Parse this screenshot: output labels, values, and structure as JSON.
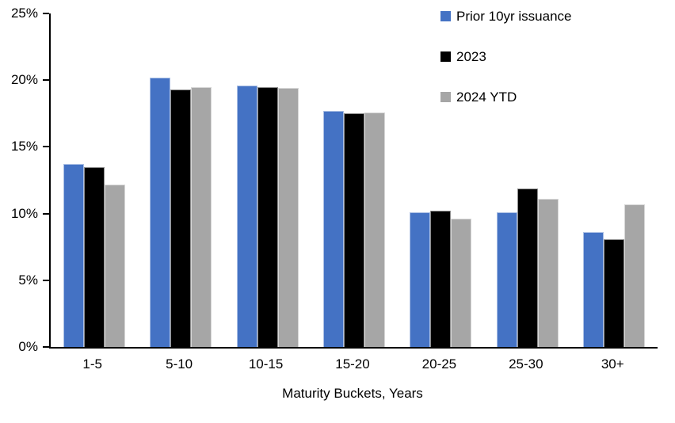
{
  "chart_data": {
    "type": "bar",
    "title": "",
    "xlabel": "Maturity Buckets, Years",
    "ylabel": "",
    "ylim": [
      0,
      25
    ],
    "grid": "off",
    "legend_position": "top-right",
    "y_ticks": [
      0,
      5,
      10,
      15,
      20,
      25
    ],
    "y_tick_labels_top_down": [
      "25%",
      "20%",
      "15%",
      "10%",
      "5%",
      "0%"
    ],
    "categories": [
      "1-5",
      "5-10",
      "10-15",
      "15-20",
      "20-25",
      "25-30",
      "30+"
    ],
    "series": [
      {
        "name": "Prior 10yr issuance",
        "color": "#4472C4",
        "values": [
          13.7,
          20.2,
          19.6,
          17.7,
          10.1,
          10.1,
          8.6
        ]
      },
      {
        "name": "2023",
        "color": "#000000",
        "values": [
          13.5,
          19.3,
          19.5,
          17.5,
          10.2,
          11.9,
          8.1
        ]
      },
      {
        "name": "2024 YTD",
        "color": "#A6A6A6",
        "values": [
          12.2,
          19.5,
          19.4,
          17.6,
          9.6,
          11.1,
          10.7
        ]
      }
    ]
  }
}
